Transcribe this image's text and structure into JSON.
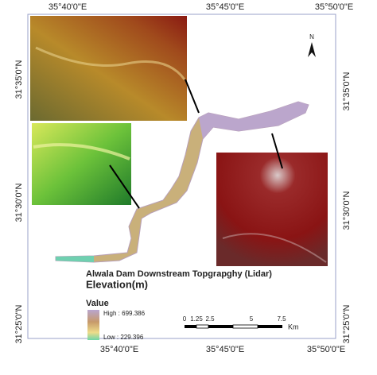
{
  "map": {
    "top_labels": [
      "35°40'0\"E",
      "35°45'0\"E",
      "35°50'0\"E"
    ],
    "bottom_labels": [
      "35°40'0\"E",
      "35°45'0\"E",
      "35°50'0\"E"
    ],
    "left_labels": [
      "31°35'0\"N",
      "31°30'0\"N",
      "31°25'0\"N"
    ],
    "right_labels": [
      "31°35'0\"N",
      "31°30'0\"N",
      "31°25'0\"N"
    ],
    "north": "N",
    "legend": {
      "title": "Alwala Dam Downstream Topgrapghy (Lidar)",
      "subtitle": "Elevation(m)",
      "heading": "Value",
      "high": "High : 699.386",
      "low": "Low : 229.396"
    },
    "scale": {
      "ticks": [
        "0",
        "1.25",
        "2.5",
        "5",
        "7.5"
      ],
      "unit": "Km"
    }
  }
}
